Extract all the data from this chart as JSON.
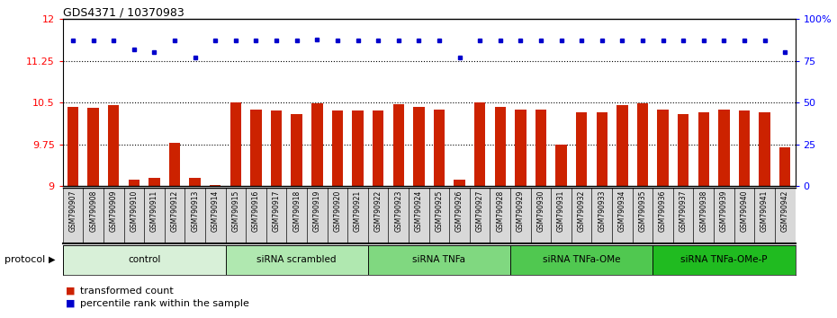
{
  "title": "GDS4371 / 10370983",
  "samples": [
    "GSM790907",
    "GSM790908",
    "GSM790909",
    "GSM790910",
    "GSM790911",
    "GSM790912",
    "GSM790913",
    "GSM790914",
    "GSM790915",
    "GSM790916",
    "GSM790917",
    "GSM790918",
    "GSM790919",
    "GSM790920",
    "GSM790921",
    "GSM790922",
    "GSM790923",
    "GSM790924",
    "GSM790925",
    "GSM790926",
    "GSM790927",
    "GSM790928",
    "GSM790929",
    "GSM790930",
    "GSM790931",
    "GSM790932",
    "GSM790933",
    "GSM790934",
    "GSM790935",
    "GSM790936",
    "GSM790937",
    "GSM790938",
    "GSM790939",
    "GSM790940",
    "GSM790941",
    "GSM790942"
  ],
  "bar_values": [
    10.42,
    10.4,
    10.46,
    9.12,
    9.15,
    9.78,
    9.15,
    9.02,
    10.5,
    10.38,
    10.36,
    10.3,
    10.48,
    10.36,
    10.35,
    10.35,
    10.47,
    10.42,
    10.38,
    9.12,
    10.5,
    10.42,
    10.37,
    10.37,
    9.74,
    10.33,
    10.33,
    10.46,
    10.48,
    10.38,
    10.3,
    10.33,
    10.38,
    10.35,
    10.33,
    9.7
  ],
  "dot_values": [
    87,
    87,
    87,
    82,
    80,
    87,
    77,
    87,
    87,
    87,
    87,
    87,
    88,
    87,
    87,
    87,
    87,
    87,
    87,
    77,
    87,
    87,
    87,
    87,
    87,
    87,
    87,
    87,
    87,
    87,
    87,
    87,
    87,
    87,
    87,
    80
  ],
  "bar_color": "#cc2200",
  "dot_color": "#0000cc",
  "ylim_left": [
    9.0,
    12.0
  ],
  "ylim_right": [
    0,
    100
  ],
  "yticks_left": [
    9.0,
    9.75,
    10.5,
    11.25,
    12.0
  ],
  "yticks_left_labels": [
    "9",
    "9.75",
    "10.5",
    "11.25",
    "12"
  ],
  "yticks_right": [
    0,
    25,
    50,
    75,
    100
  ],
  "yticks_right_labels": [
    "0",
    "25",
    "50",
    "75",
    "100%"
  ],
  "hlines": [
    9.75,
    10.5,
    11.25
  ],
  "groups": [
    {
      "label": "control",
      "start": 0,
      "end": 8
    },
    {
      "label": "siRNA scrambled",
      "start": 8,
      "end": 15
    },
    {
      "label": "siRNA TNFa",
      "start": 15,
      "end": 22
    },
    {
      "label": "siRNA TNFa-OMe",
      "start": 22,
      "end": 29
    },
    {
      "label": "siRNA TNFa-OMe-P",
      "start": 29,
      "end": 36
    }
  ],
  "group_colors": [
    "#d8f0d8",
    "#b0e8b0",
    "#80d880",
    "#50c850",
    "#20bb20"
  ],
  "sample_bg_color": "#d0d0d0",
  "bar_width": 0.55,
  "legend_bar_label": "transformed count",
  "legend_dot_label": "percentile rank within the sample"
}
